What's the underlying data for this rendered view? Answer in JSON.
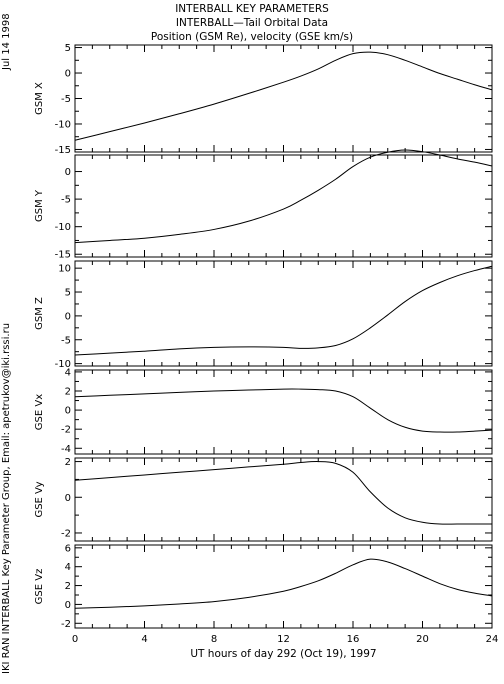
{
  "header": {
    "title": "INTERBALL KEY PARAMETERS",
    "subtitle": "INTERBALL—Tail Orbital Data",
    "subtitle2": "Position (GSM Re), velocity (GSE km/s)"
  },
  "side": {
    "date": "Jul 14 1998",
    "credit": "IKI RAN INTERBALL Key Parameter Group, Email: apetrukov@iki.rssi.ru"
  },
  "chart_data": {
    "type": "line",
    "xlabel": "UT hours of day 292 (Oct 19), 1997",
    "xlim": [
      0,
      24
    ],
    "xticks": [
      0,
      4,
      8,
      12,
      16,
      20,
      24
    ],
    "x": [
      0,
      2,
      4,
      6,
      8,
      10,
      12,
      13,
      14,
      15,
      16,
      17,
      18,
      19,
      20,
      21,
      22,
      23,
      24
    ],
    "panels": [
      {
        "ylabel": "GSM X",
        "ylim": [
          -15.5,
          5.5
        ],
        "yticks": [
          -15,
          -10,
          -5,
          0,
          5
        ],
        "values": [
          -13.2,
          -11.5,
          -9.8,
          -8.0,
          -6.1,
          -4.0,
          -1.8,
          -0.6,
          0.8,
          2.5,
          3.8,
          4.1,
          3.6,
          2.5,
          1.2,
          -0.1,
          -1.2,
          -2.3,
          -3.3
        ]
      },
      {
        "ylabel": "GSM Y",
        "ylim": [
          -15.5,
          3.0
        ],
        "yticks": [
          -15,
          -10,
          -5,
          0
        ],
        "values": [
          -12.9,
          -12.5,
          -12.1,
          -11.4,
          -10.5,
          -9.0,
          -6.8,
          -5.2,
          -3.4,
          -1.4,
          0.9,
          2.6,
          3.5,
          3.9,
          3.6,
          3.0,
          2.3,
          1.7,
          1.0
        ]
      },
      {
        "ylabel": "GSM Z",
        "ylim": [
          -10.5,
          11.5
        ],
        "yticks": [
          -10,
          -5,
          0,
          5,
          10
        ],
        "values": [
          -8.2,
          -7.8,
          -7.4,
          -6.9,
          -6.6,
          -6.5,
          -6.6,
          -6.8,
          -6.7,
          -6.2,
          -4.8,
          -2.5,
          0.2,
          3.0,
          5.3,
          7.0,
          8.4,
          9.5,
          10.4
        ]
      },
      {
        "ylabel": "GSE Vx",
        "ylim": [
          -4.6,
          4.2
        ],
        "yticks": [
          -4,
          -2,
          0,
          2,
          4
        ],
        "values": [
          1.4,
          1.55,
          1.7,
          1.85,
          2.0,
          2.1,
          2.2,
          2.2,
          2.15,
          2.0,
          1.4,
          0.2,
          -1.0,
          -1.8,
          -2.2,
          -2.3,
          -2.3,
          -2.2,
          -2.1
        ]
      },
      {
        "ylabel": "GSE Vy",
        "ylim": [
          -2.45,
          2.2
        ],
        "yticks": [
          -2,
          0,
          2
        ],
        "values": [
          0.95,
          1.1,
          1.25,
          1.4,
          1.55,
          1.7,
          1.85,
          1.95,
          2.0,
          1.9,
          1.4,
          0.3,
          -0.6,
          -1.15,
          -1.4,
          -1.5,
          -1.5,
          -1.5,
          -1.5
        ]
      },
      {
        "ylabel": "GSE Vz",
        "ylim": [
          -2.5,
          6.3
        ],
        "yticks": [
          -2,
          0,
          2,
          4,
          6
        ],
        "values": [
          -0.4,
          -0.3,
          -0.15,
          0.05,
          0.3,
          0.75,
          1.4,
          1.9,
          2.5,
          3.3,
          4.2,
          4.8,
          4.5,
          3.8,
          3.0,
          2.2,
          1.6,
          1.2,
          0.9
        ]
      }
    ]
  }
}
